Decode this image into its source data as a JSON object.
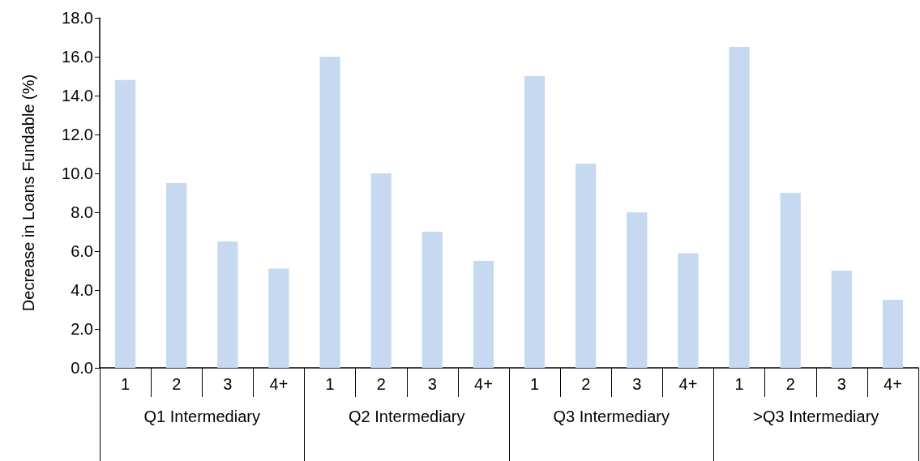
{
  "chart_data": {
    "type": "bar",
    "ylabel": "Decrease in Loans Fundable (%)",
    "categories": [
      "1",
      "2",
      "3",
      "4+",
      "1",
      "2",
      "3",
      "4+",
      "1",
      "2",
      "3",
      "4+",
      "1",
      "2",
      "3",
      "4+"
    ],
    "values": [
      14.8,
      9.5,
      6.5,
      5.1,
      16.0,
      10.0,
      7.0,
      5.5,
      15.0,
      10.5,
      8.0,
      5.9,
      16.5,
      9.0,
      5.0,
      3.5
    ],
    "color": "#c6d9f0",
    "annotations": [
      "Q1 Intermediary",
      "Q2 Intermediary",
      "Q3 Intermediary",
      ">Q3 Intermediary"
    ],
    "ylim": [
      0,
      18
    ],
    "yticks": [
      {
        "value": 0,
        "label": "0.0"
      },
      {
        "value": 2,
        "label": "2.0"
      },
      {
        "value": 4,
        "label": "4.0"
      },
      {
        "value": 6,
        "label": "6.0"
      },
      {
        "value": 8,
        "label": "8.0"
      },
      {
        "value": 10,
        "label": "10.0"
      },
      {
        "value": 12,
        "label": "12.0"
      },
      {
        "value": 14,
        "label": "14.0"
      },
      {
        "value": 16,
        "label": "16.0"
      },
      {
        "value": 18,
        "label": "18.0"
      }
    ],
    "relative": false
  }
}
